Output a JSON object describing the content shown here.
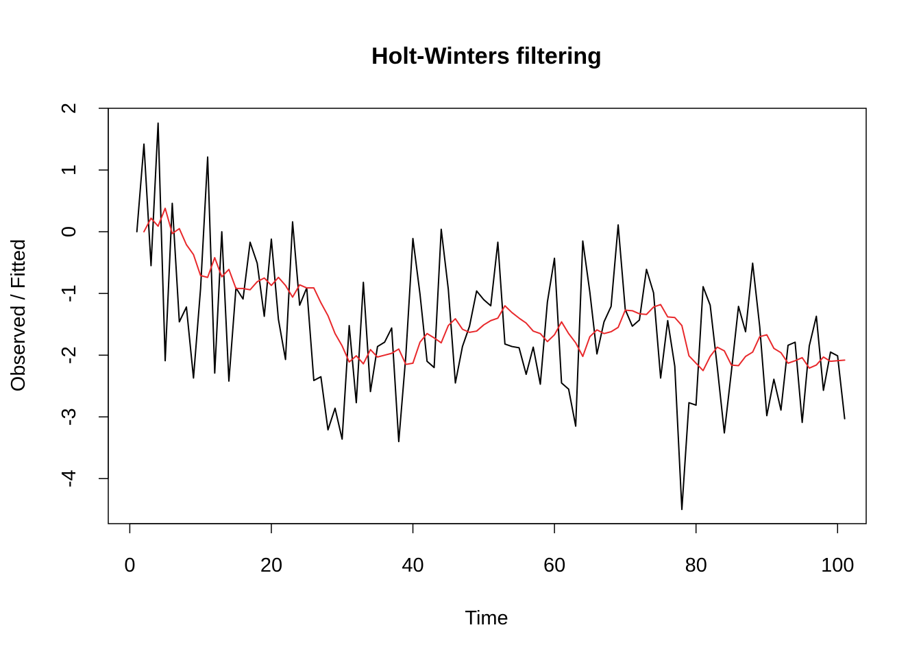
{
  "chart_data": {
    "type": "line",
    "title": "Holt-Winters filtering",
    "xlabel": "Time",
    "ylabel": "Observed / Fitted",
    "xlim": [
      -3.04,
      104.04
    ],
    "ylim": [
      -4.73,
      2.0
    ],
    "x_ticks": [
      0,
      20,
      40,
      60,
      80,
      100
    ],
    "y_ticks": [
      -4,
      -3,
      -2,
      -1,
      0,
      1,
      2
    ],
    "x_tick_labels": [
      "0",
      "20",
      "40",
      "60",
      "80",
      "100"
    ],
    "y_tick_labels": [
      "-4",
      "-3",
      "-2",
      "-1",
      "0",
      "1",
      "2"
    ],
    "grid": false,
    "legend": "none",
    "series": [
      {
        "color": "#000000",
        "x_start": 1,
        "values": [
          0.0,
          1.42,
          -0.55,
          1.76,
          -2.09,
          0.46,
          -1.46,
          -1.22,
          -2.37,
          -0.92,
          1.21,
          -2.29,
          0.0,
          -2.42,
          -0.91,
          -1.09,
          -0.17,
          -0.51,
          -1.37,
          -0.12,
          -1.42,
          -2.07,
          0.16,
          -1.19,
          -0.91,
          -2.41,
          -2.35,
          -3.21,
          -2.86,
          -3.36,
          -1.52,
          -2.77,
          -0.82,
          -2.59,
          -1.86,
          -1.79,
          -1.56,
          -3.4,
          -2.01,
          -0.11,
          -1.01,
          -2.1,
          -2.2,
          0.04,
          -0.93,
          -2.45,
          -1.86,
          -1.53,
          -0.96,
          -1.1,
          -1.2,
          -0.17,
          -1.82,
          -1.86,
          -1.88,
          -2.31,
          -1.87,
          -2.47,
          -1.14,
          -0.43,
          -2.45,
          -2.55,
          -3.15,
          -0.15,
          -0.98,
          -1.98,
          -1.46,
          -1.21,
          0.11,
          -1.26,
          -1.53,
          -1.43,
          -0.61,
          -0.99,
          -2.37,
          -1.44,
          -2.18,
          -4.5,
          -2.77,
          -2.81,
          -0.89,
          -1.19,
          -2.19,
          -3.26,
          -2.26,
          -1.21,
          -1.62,
          -0.51,
          -1.54,
          -2.98,
          -2.39,
          -2.89,
          -1.84,
          -1.79,
          -3.09,
          -1.85,
          -1.37,
          -2.57,
          -1.95,
          -2.01,
          -3.03
        ]
      },
      {
        "color": "#e8282b",
        "x_start": 2,
        "values": [
          0.0,
          0.22,
          0.09,
          0.38,
          -0.03,
          0.05,
          -0.21,
          -0.37,
          -0.71,
          -0.74,
          -0.42,
          -0.73,
          -0.61,
          -0.92,
          -0.92,
          -0.94,
          -0.81,
          -0.75,
          -0.87,
          -0.74,
          -0.87,
          -1.06,
          -0.86,
          -0.91,
          -0.91,
          -1.15,
          -1.36,
          -1.65,
          -1.85,
          -2.11,
          -2.01,
          -2.14,
          -1.91,
          -2.03,
          -2.0,
          -1.97,
          -1.9,
          -2.15,
          -2.13,
          -1.79,
          -1.65,
          -1.72,
          -1.8,
          -1.52,
          -1.41,
          -1.58,
          -1.63,
          -1.61,
          -1.51,
          -1.44,
          -1.4,
          -1.2,
          -1.31,
          -1.4,
          -1.48,
          -1.61,
          -1.65,
          -1.78,
          -1.67,
          -1.46,
          -1.65,
          -1.8,
          -2.02,
          -1.7,
          -1.59,
          -1.65,
          -1.62,
          -1.55,
          -1.27,
          -1.28,
          -1.33,
          -1.34,
          -1.22,
          -1.18,
          -1.38,
          -1.39,
          -1.52,
          -2.01,
          -2.13,
          -2.25,
          -2.02,
          -1.87,
          -1.93,
          -2.16,
          -2.17,
          -2.02,
          -1.95,
          -1.7,
          -1.67,
          -1.89,
          -1.96,
          -2.13,
          -2.09,
          -2.04,
          -2.21,
          -2.16,
          -2.03,
          -2.1,
          -2.09,
          -2.08
        ]
      }
    ]
  }
}
